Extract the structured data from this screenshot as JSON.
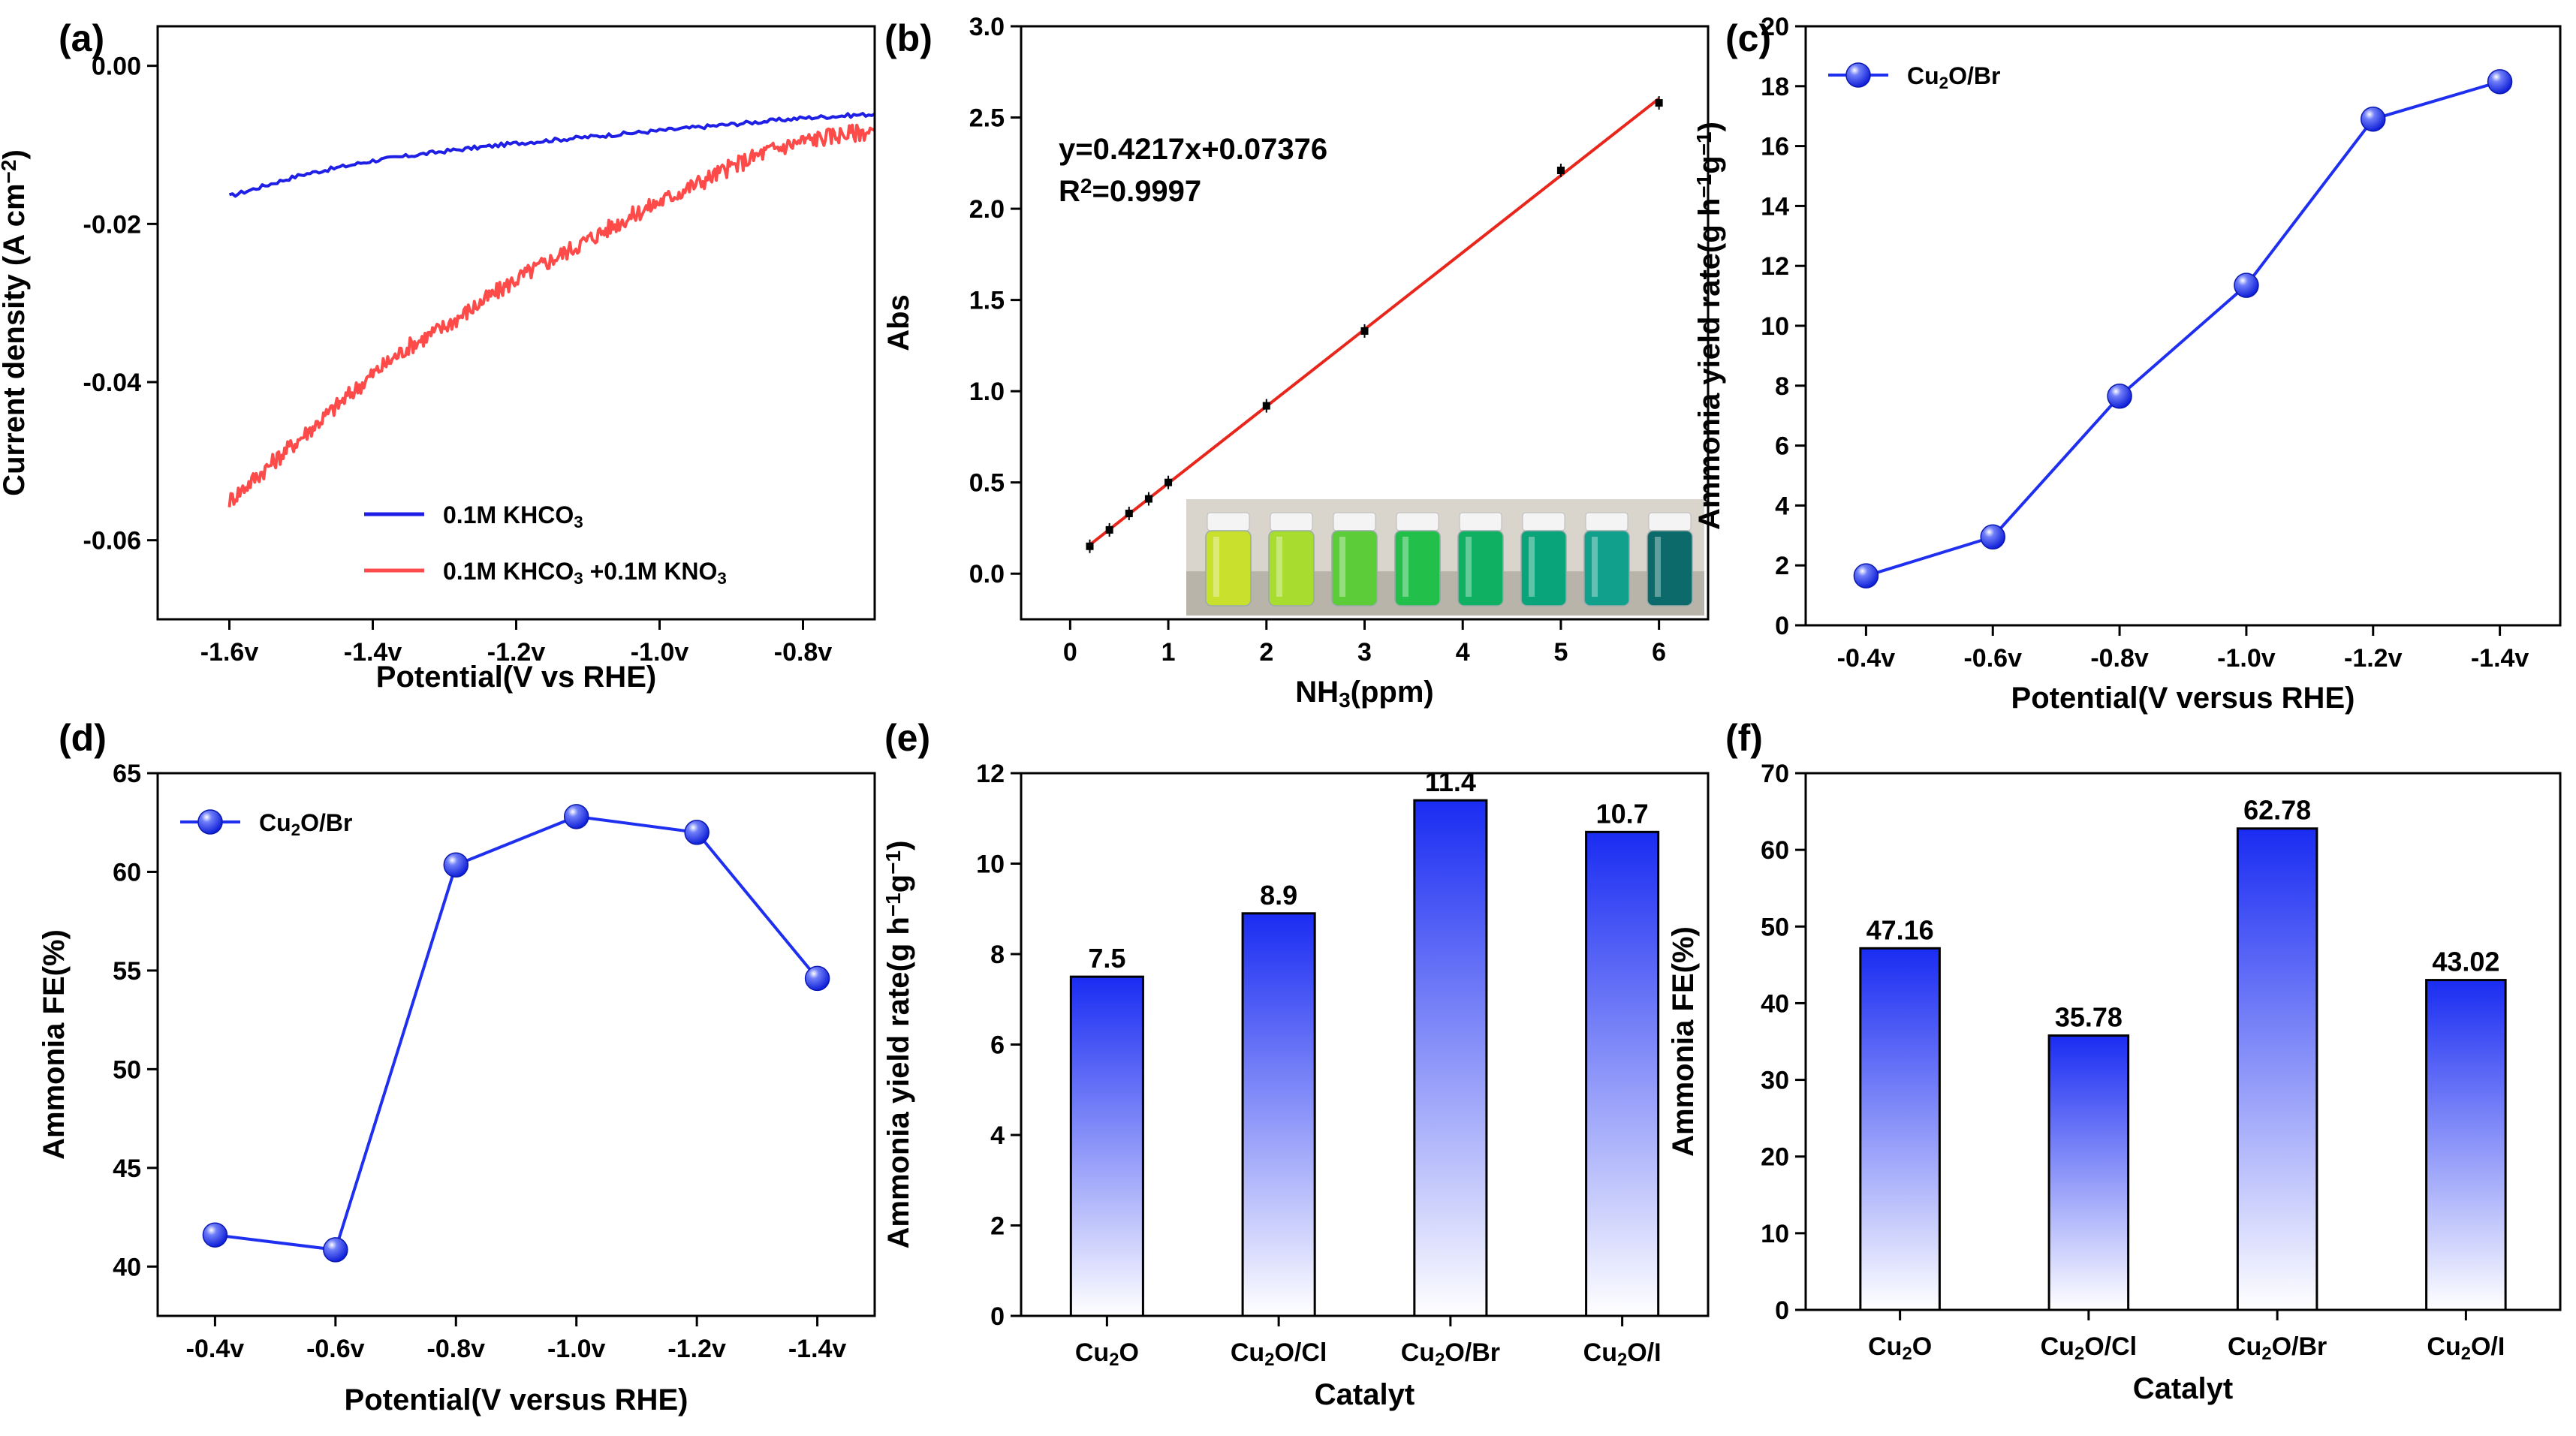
{
  "chart_data": [
    {
      "panel": "(a)",
      "type": "line",
      "xlabel": "Potential(V vs RHE)",
      "ylabel": "Current density (A cm⁻²)",
      "xlim": [
        -1.7,
        -0.7
      ],
      "ylim": [
        -0.07,
        0.005
      ],
      "x_ticks": [
        -1.6,
        -1.4,
        -1.2,
        -1.0,
        -0.8
      ],
      "x_tick_labels": [
        "-1.6v",
        "-1.4v",
        "-1.2v",
        "-1.0v",
        "-0.8v"
      ],
      "y_ticks": [
        0.0,
        -0.02,
        -0.04,
        -0.06
      ],
      "y_tick_labels": [
        "0.00",
        "-0.02",
        "-0.04",
        "-0.06"
      ],
      "legend": [
        "0.1M KHCO₃",
        "0.1M KHCO₃ +0.1M KNO₃"
      ],
      "series": [
        {
          "name": "0.1M KHCO₃",
          "color": "#1f1fe6",
          "x": [
            -1.6,
            -1.5,
            -1.4,
            -1.3,
            -1.2,
            -1.1,
            -1.0,
            -0.9,
            -0.8,
            -0.7
          ],
          "y": [
            -0.0165,
            -0.0138,
            -0.012,
            -0.0108,
            -0.0098,
            -0.009,
            -0.0082,
            -0.0074,
            -0.0066,
            -0.0061
          ]
        },
        {
          "name": "0.1M KHCO₃ +0.1M KNO₃",
          "color": "#ff4a4a",
          "x": [
            -1.6,
            -1.55,
            -1.5,
            -1.45,
            -1.4,
            -1.35,
            -1.3,
            -1.25,
            -1.2,
            -1.15,
            -1.1,
            -1.05,
            -1.0,
            -0.95,
            -0.9,
            -0.85,
            -0.8,
            -0.75,
            -0.7
          ],
          "y": [
            -0.055,
            -0.051,
            -0.047,
            -0.043,
            -0.039,
            -0.0355,
            -0.033,
            -0.03,
            -0.027,
            -0.0245,
            -0.022,
            -0.0195,
            -0.0172,
            -0.015,
            -0.0128,
            -0.0108,
            -0.0095,
            -0.0087,
            -0.0082
          ]
        }
      ]
    },
    {
      "panel": "(b)",
      "type": "scatter",
      "xlabel": "NH₃(ppm)",
      "ylabel": "Abs",
      "xlim": [
        -0.5,
        6.5
      ],
      "ylim": [
        -0.25,
        3.0
      ],
      "x_ticks": [
        0,
        1,
        2,
        3,
        4,
        5,
        6
      ],
      "x_tick_labels": [
        "0",
        "1",
        "2",
        "3",
        "4",
        "5",
        "6"
      ],
      "y_ticks": [
        0.0,
        0.5,
        1.0,
        1.5,
        2.0,
        2.5,
        3.0
      ],
      "y_tick_labels": [
        "0.0",
        "0.5",
        "1.0",
        "1.5",
        "2.0",
        "2.5",
        "3.0"
      ],
      "annotation_eq": "y=0.4217x+0.07376",
      "annotation_r2": "R²=0.9997",
      "fit": {
        "slope": 0.4217,
        "intercept": 0.07376,
        "x_range": [
          0.2,
          6
        ],
        "color": "#e8261c"
      },
      "x": [
        0.2,
        0.4,
        0.6,
        0.8,
        1.0,
        2.0,
        3.0,
        5.0,
        6.0
      ],
      "y": [
        0.15,
        0.24,
        0.33,
        0.41,
        0.5,
        0.92,
        1.33,
        2.21,
        2.58
      ],
      "inset": "photo of eight vials, yellow-green to dark teal",
      "vial_colors": [
        "#c9e02c",
        "#a8dc2e",
        "#5ccc38",
        "#22c04a",
        "#10b062",
        "#0aa47a",
        "#10a08c",
        "#0d6a6a"
      ]
    },
    {
      "panel": "(c)",
      "type": "line",
      "xlabel": "Potential(V versus RHE)",
      "ylabel": "Ammonia yield rate(g h⁻¹g⁻¹)",
      "categories": [
        "-0.4v",
        "-0.6v",
        "-0.8v",
        "-1.0v",
        "-1.2v",
        "-1.4v"
      ],
      "values": [
        1.65,
        2.95,
        7.65,
        11.35,
        16.9,
        18.15
      ],
      "ylim": [
        0,
        20
      ],
      "y_ticks": [
        0,
        2,
        4,
        6,
        8,
        10,
        12,
        14,
        16,
        18,
        20
      ],
      "y_tick_labels": [
        "0",
        "2",
        "4",
        "6",
        "8",
        "10",
        "12",
        "14",
        "16",
        "18",
        "20"
      ],
      "legend": [
        "Cu₂O/Br"
      ],
      "color": "#1f2ff0"
    },
    {
      "panel": "(d)",
      "type": "line",
      "xlabel": "Potential(V versus RHE)",
      "ylabel": "Ammonia FE(%)",
      "categories": [
        "-0.4v",
        "-0.6v",
        "-0.8v",
        "-1.0v",
        "-1.2v",
        "-1.4v"
      ],
      "values": [
        41.6,
        40.85,
        60.35,
        62.8,
        62.0,
        54.6
      ],
      "ylim": [
        37.5,
        65
      ],
      "y_ticks": [
        40,
        45,
        50,
        55,
        60,
        65
      ],
      "y_tick_labels": [
        "40",
        "45",
        "50",
        "55",
        "60",
        "65"
      ],
      "legend": [
        "Cu₂O/Br"
      ],
      "color": "#1f2ff0"
    },
    {
      "panel": "(e)",
      "type": "bar",
      "xlabel": "Catalyt",
      "ylabel": "Ammonia yield rate(g h⁻¹g⁻¹)",
      "categories": [
        "Cu₂O",
        "Cu₂O/Cl",
        "Cu₂O/Br",
        "Cu₂O/I"
      ],
      "values": [
        7.5,
        8.9,
        11.4,
        10.7
      ],
      "value_labels": [
        "7.5",
        "8.9",
        "11.4",
        "10.7"
      ],
      "ylim": [
        0,
        12
      ],
      "y_ticks": [
        0,
        2,
        4,
        6,
        8,
        10,
        12
      ],
      "y_tick_labels": [
        "0",
        "2",
        "4",
        "6",
        "8",
        "10",
        "12"
      ],
      "color": "#1f2ff0"
    },
    {
      "panel": "(f)",
      "type": "bar",
      "xlabel": "Catalyt",
      "ylabel": "Ammonia FE(%)",
      "categories": [
        "Cu₂O",
        "Cu₂O/Cl",
        "Cu₂O/Br",
        "Cu₂O/I"
      ],
      "values": [
        47.16,
        35.78,
        62.78,
        43.02
      ],
      "value_labels": [
        "47.16",
        "35.78",
        "62.78",
        "43.02"
      ],
      "ylim": [
        0,
        70
      ],
      "y_ticks": [
        0,
        10,
        20,
        30,
        40,
        50,
        60,
        70
      ],
      "y_tick_labels": [
        "0",
        "10",
        "20",
        "30",
        "40",
        "50",
        "60",
        "70"
      ],
      "color": "#1f2ff0"
    }
  ]
}
